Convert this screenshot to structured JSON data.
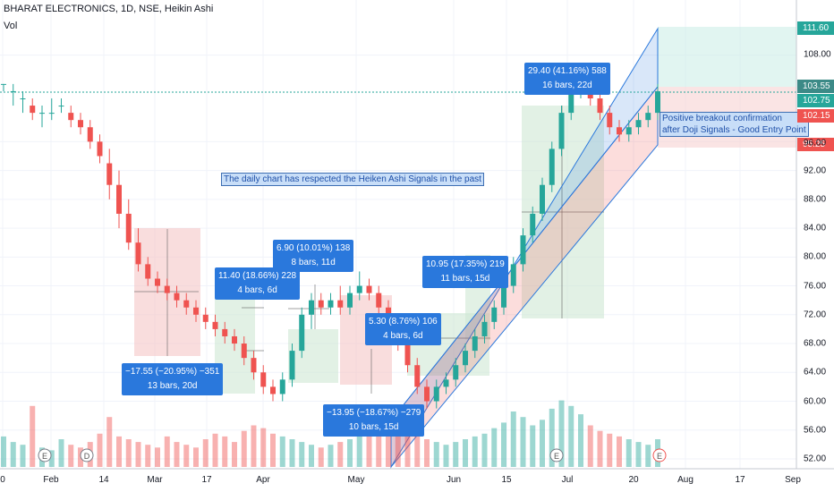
{
  "header": {
    "symbol_line": "BHARAT ELECTRONICS, 1D, NSE, Heikin Ashi",
    "volume_label": "Vol"
  },
  "x_axis_labels": [
    "0",
    "Feb",
    "14",
    "Mar",
    "17",
    "Apr",
    "May",
    "Jun",
    "15",
    "Jul",
    "20",
    "Aug",
    "17",
    "Sep"
  ],
  "y_axis_labels": [
    "108.00",
    "96.00",
    "92.00",
    "88.00",
    "84.00",
    "80.00",
    "76.00",
    "72.00",
    "68.00",
    "64.00",
    "60.00",
    "56.00",
    "52.00"
  ],
  "price_tags": [
    {
      "label": "111.60",
      "color": "#26a69a"
    },
    {
      "label": "103.55",
      "color": "#3c8a87"
    },
    {
      "label": "102.75",
      "color": "#26a69a"
    },
    {
      "label": "102.15",
      "color": "#ef5350"
    },
    {
      "label": "95.25",
      "color": "#ef5350"
    }
  ],
  "annotations": {
    "daily_note": "The daily chart has respected the Heiken Ashi Signals in the past",
    "breakout_line1": "Positive breakout confirmation",
    "breakout_line2": "after Doji Signals - Good Entry Point"
  },
  "measure_labels": [
    {
      "line1": "−17.55 (−20.95%) −351",
      "line2": "13 bars, 20d"
    },
    {
      "line1": "11.40 (18.66%) 228",
      "line2": "4 bars, 6d"
    },
    {
      "line1": "6.90 (10.01%) 138",
      "line2": "8 bars, 11d"
    },
    {
      "line1": "−13.95 (−18.67%) −279",
      "line2": "10 bars, 15d"
    },
    {
      "line1": "5.30 (8.76%) 106",
      "line2": "4 bars, 6d"
    },
    {
      "line1": "10.95 (17.35%) 219",
      "line2": "11 bars, 15d"
    },
    {
      "line1": "29.40 (41.16%) 588",
      "line2": "16 bars, 22d"
    }
  ],
  "event_markers": [
    "E",
    "D",
    "E",
    "E"
  ],
  "colors": {
    "up": "#26a69a",
    "down": "#ef5350",
    "channel_blue": "#2a78dc",
    "grid": "#f0f3fa"
  },
  "chart_data": {
    "type": "candlestick",
    "title": "BHARAT ELECTRONICS, 1D, NSE, Heikin Ashi",
    "ylim": [
      50,
      114
    ],
    "candles": [
      [
        104,
        104,
        104,
        103
      ],
      [
        103,
        103,
        104,
        101
      ],
      [
        102,
        102,
        103,
        100
      ],
      [
        101,
        100,
        102,
        99
      ],
      [
        100,
        100,
        101,
        98
      ],
      [
        100,
        100,
        102,
        99
      ],
      [
        101,
        101,
        102,
        100
      ],
      [
        100,
        99,
        101,
        98
      ],
      [
        99,
        98,
        100,
        97
      ],
      [
        98,
        96,
        99,
        95
      ],
      [
        96,
        94,
        97,
        93
      ],
      [
        93,
        90,
        95,
        88
      ],
      [
        90,
        86,
        92,
        84
      ],
      [
        86,
        82,
        88,
        81
      ],
      [
        82,
        79,
        84,
        78
      ],
      [
        79,
        77,
        80,
        76
      ],
      [
        77,
        76,
        78,
        75
      ],
      [
        76,
        75,
        77,
        74
      ],
      [
        75,
        74,
        76,
        73
      ],
      [
        74,
        73,
        75,
        72
      ],
      [
        73,
        72,
        74,
        71
      ],
      [
        72,
        71,
        73,
        70
      ],
      [
        71,
        70,
        72,
        69
      ],
      [
        70,
        69,
        71,
        68
      ],
      [
        69,
        68,
        70,
        67
      ],
      [
        68,
        66,
        69,
        65
      ],
      [
        66,
        64,
        67,
        63
      ],
      [
        64,
        62,
        65,
        61
      ],
      [
        62,
        61,
        63,
        60
      ],
      [
        61,
        63,
        64,
        60
      ],
      [
        63,
        67,
        68,
        62
      ],
      [
        67,
        72,
        73,
        66
      ],
      [
        72,
        74,
        75,
        70
      ],
      [
        74,
        73,
        75,
        72
      ],
      [
        73,
        74,
        75,
        72
      ],
      [
        74,
        73,
        76,
        72
      ],
      [
        73,
        75,
        76,
        72
      ],
      [
        75,
        76,
        78,
        74
      ],
      [
        76,
        75,
        77,
        74
      ],
      [
        75,
        73,
        76,
        72
      ],
      [
        73,
        71,
        74,
        70
      ],
      [
        71,
        68,
        72,
        67
      ],
      [
        68,
        65,
        69,
        64
      ],
      [
        65,
        62,
        66,
        61
      ],
      [
        62,
        60,
        63,
        59
      ],
      [
        60,
        62,
        63,
        59
      ],
      [
        62,
        63,
        64,
        61
      ],
      [
        63,
        65,
        66,
        62
      ],
      [
        65,
        67,
        68,
        64
      ],
      [
        67,
        69,
        70,
        66
      ],
      [
        69,
        71,
        72,
        68
      ],
      [
        71,
        73,
        74,
        70
      ],
      [
        73,
        76,
        77,
        72
      ],
      [
        76,
        79,
        80,
        75
      ],
      [
        79,
        83,
        84,
        78
      ],
      [
        83,
        86,
        87,
        82
      ],
      [
        86,
        90,
        91,
        85
      ],
      [
        90,
        95,
        96,
        89
      ],
      [
        95,
        100,
        101,
        94
      ],
      [
        100,
        103,
        104,
        99
      ],
      [
        103,
        104,
        105,
        102
      ],
      [
        104,
        102,
        105,
        101
      ],
      [
        102,
        100,
        103,
        99
      ],
      [
        100,
        98,
        101,
        97
      ],
      [
        98,
        97,
        99,
        96
      ],
      [
        97,
        98,
        99,
        96
      ],
      [
        98,
        99,
        100,
        97
      ],
      [
        99,
        100,
        101,
        98
      ],
      [
        100,
        103,
        104,
        99
      ]
    ],
    "volumes": [
      22,
      18,
      16,
      44,
      14,
      12,
      20,
      16,
      14,
      18,
      24,
      36,
      22,
      20,
      18,
      16,
      14,
      22,
      18,
      16,
      14,
      20,
      24,
      22,
      18,
      26,
      30,
      28,
      24,
      22,
      20,
      18,
      16,
      14,
      16,
      18,
      20,
      22,
      24,
      30,
      34,
      28,
      24,
      22,
      20,
      18,
      16,
      18,
      20,
      22,
      24,
      28,
      32,
      40,
      36,
      30,
      34,
      42,
      48,
      44,
      38,
      30,
      26,
      24,
      22,
      20,
      18,
      16,
      20
    ]
  }
}
